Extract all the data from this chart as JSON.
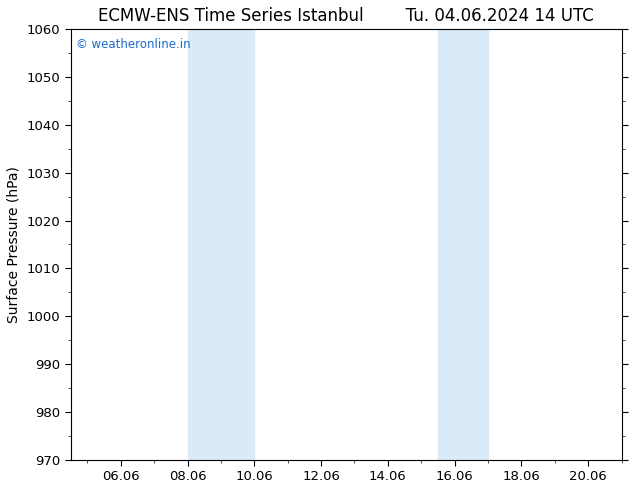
{
  "title_left": "ECMW-ENS Time Series Istanbul",
  "title_right": "Tu. 04.06.2024 14 UTC",
  "ylabel": "Surface Pressure (hPa)",
  "ylim": [
    970,
    1060
  ],
  "yticks": [
    970,
    980,
    990,
    1000,
    1010,
    1020,
    1030,
    1040,
    1050,
    1060
  ],
  "xlim_start": 4.5,
  "xlim_end": 21.0,
  "xtick_labels": [
    "06.06",
    "08.06",
    "10.06",
    "12.06",
    "14.06",
    "16.06",
    "18.06",
    "20.06"
  ],
  "xtick_positions": [
    6,
    8,
    10,
    12,
    14,
    16,
    18,
    20
  ],
  "shaded_bands": [
    {
      "xmin": 8.0,
      "xmax": 10.0
    },
    {
      "xmin": 15.5,
      "xmax": 17.0
    }
  ],
  "band_color": "#daeaf7",
  "watermark_text": "© weatheronline.in",
  "watermark_color": "#1a6bcc",
  "background_color": "#ffffff",
  "title_fontsize": 12,
  "label_fontsize": 10,
  "tick_fontsize": 9.5,
  "watermark_fontsize": 8.5
}
